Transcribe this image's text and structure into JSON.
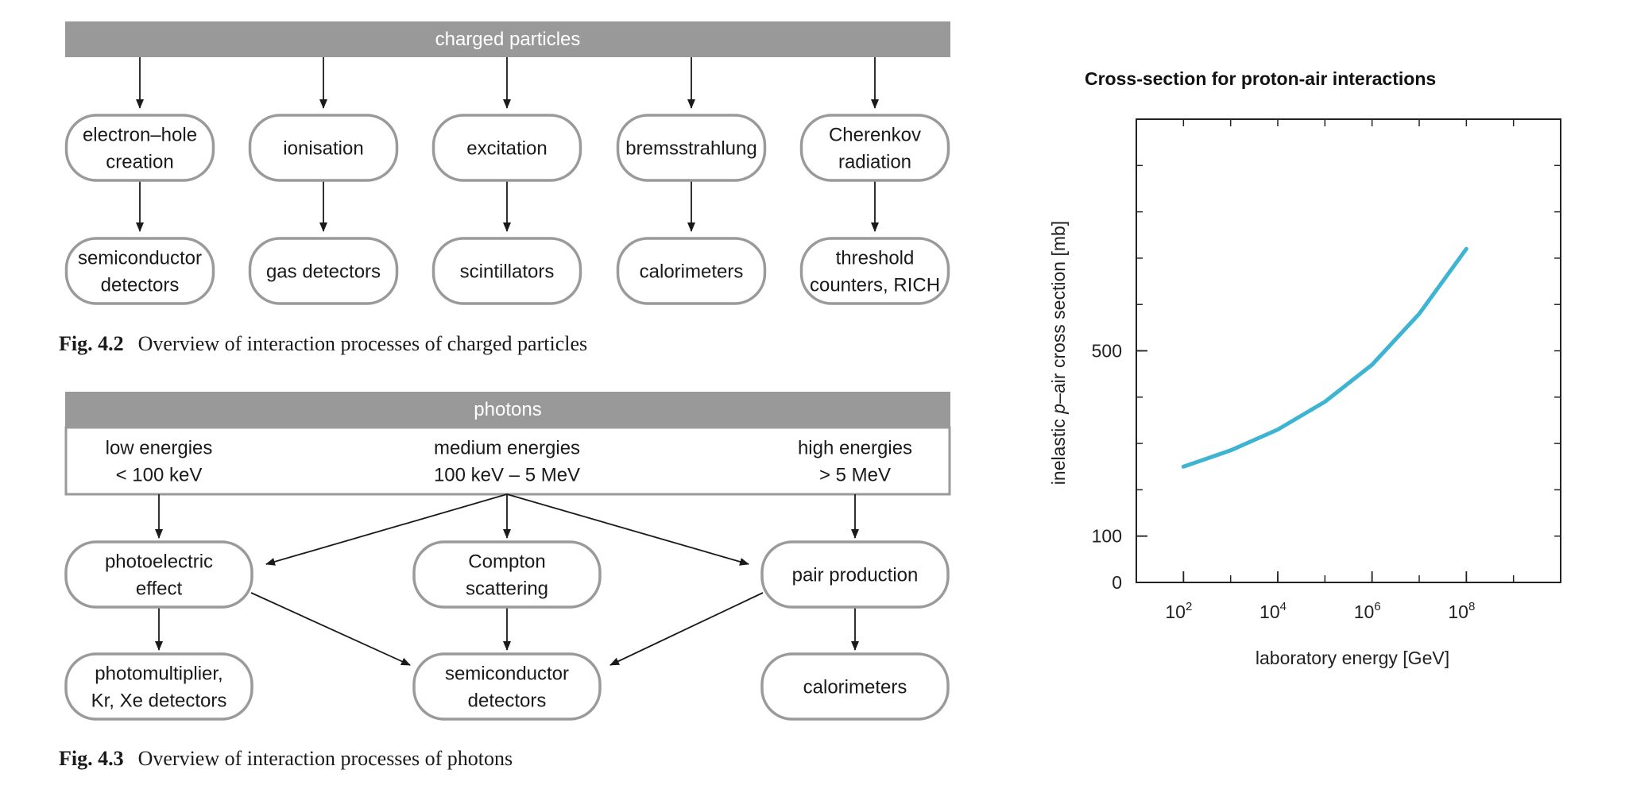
{
  "fig42": {
    "header": "charged particles",
    "processes": [
      [
        "electron–hole",
        "creation"
      ],
      [
        "ionisation"
      ],
      [
        "excitation"
      ],
      [
        "bremsstrahlung"
      ],
      [
        "Cherenkov",
        "radiation"
      ]
    ],
    "detectors": [
      [
        "semiconductor",
        "detectors"
      ],
      [
        "gas detectors"
      ],
      [
        "scintillators"
      ],
      [
        "calorimeters"
      ],
      [
        "threshold",
        "counters, RICH"
      ]
    ],
    "caption_label": "Fig. 4.2",
    "caption_text": "Overview of interaction processes of charged particles"
  },
  "fig43": {
    "header": "photons",
    "ranges": [
      [
        "low energies",
        "< 100 keV"
      ],
      [
        "medium energies",
        "100 keV – 5 MeV"
      ],
      [
        "high energies",
        "> 5 MeV"
      ]
    ],
    "processes": [
      [
        "photoelectric",
        "effect"
      ],
      [
        "Compton",
        "scattering"
      ],
      [
        "pair production"
      ]
    ],
    "detectors": [
      [
        "photomultiplier,",
        "Kr, Xe detectors"
      ],
      [
        "semiconductor",
        "detectors"
      ],
      [
        "calorimeters"
      ]
    ],
    "caption_label": "Fig. 4.3",
    "caption_text": "Overview of interaction processes of photons"
  },
  "chart_data": {
    "type": "line",
    "title": "Cross-section for proton-air interactions",
    "xlabel": "laboratory energy [GeV]",
    "ylabel_parts": [
      "inelastic ",
      "p",
      "–air cross section [mb]"
    ],
    "x_scale": "log",
    "xlim": [
      10,
      10000000000
    ],
    "ylim": [
      0,
      1000
    ],
    "x_ticks": [
      {
        "value": 100,
        "base": "10",
        "exp": "2"
      },
      {
        "value": 10000,
        "base": "10",
        "exp": "4"
      },
      {
        "value": 1000000,
        "base": "10",
        "exp": "6"
      },
      {
        "value": 100000000,
        "base": "10",
        "exp": "8"
      }
    ],
    "y_ticks": [
      0,
      100,
      500
    ],
    "series": [
      {
        "color": "#3cb4d2",
        "x": [
          100,
          1000,
          10000,
          100000,
          1000000,
          10000000,
          100000000
        ],
        "y": [
          250,
          285,
          330,
          390,
          470,
          580,
          720
        ]
      }
    ],
    "grid": false
  },
  "colors": {
    "header_fill": "#999999",
    "header_text": "#ffffff",
    "box_stroke": "#9a9a9a",
    "arrow": "#1a1a1a",
    "curve": "#3cb4d2"
  }
}
